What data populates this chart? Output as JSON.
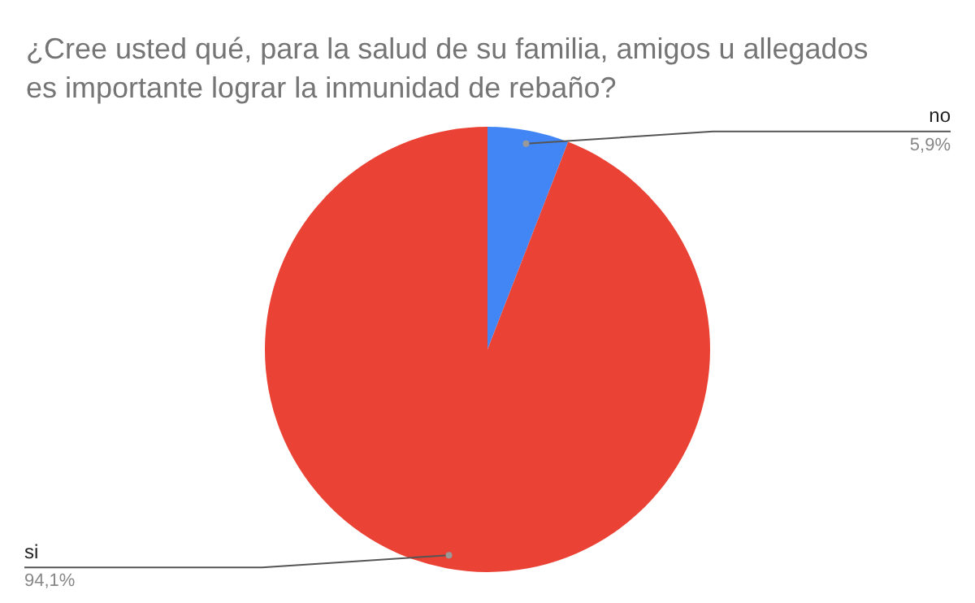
{
  "chart_data": {
    "type": "pie",
    "title": "¿Cree usted qué, para la salud de su familia, amigos u allegados es importante lograr la inmunidad de rebaño?",
    "categories": [
      "no",
      "si"
    ],
    "values": [
      5.9,
      94.1
    ],
    "colors": [
      "#4285f4",
      "#ea4335"
    ],
    "value_labels": [
      "5,9%",
      "94,1%"
    ],
    "legend": false
  }
}
